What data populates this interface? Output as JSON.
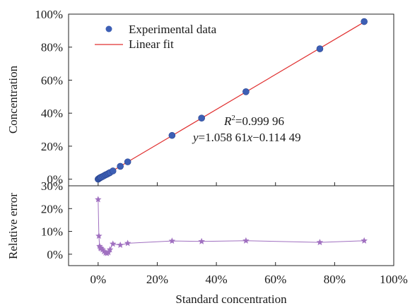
{
  "chart_data": [
    {
      "type": "scatter",
      "ylabel": "Concentration",
      "xlim": [
        -0.1,
        1.0
      ],
      "ylim": [
        -0.04,
        1.0
      ],
      "yticks": [
        0,
        0.2,
        0.4,
        0.6,
        0.8,
        1.0
      ],
      "ytick_labels": [
        "0%",
        "20%",
        "40%",
        "60%",
        "80%",
        "100%"
      ],
      "legend_position": "top-left",
      "series": [
        {
          "name": "Experimental data",
          "kind": "points",
          "color": "#3d5fb5",
          "x": [
            0.0,
            0.0025,
            0.005,
            0.0075,
            0.01,
            0.015,
            0.02,
            0.025,
            0.03,
            0.035,
            0.04,
            0.05,
            0.075,
            0.1,
            0.25,
            0.35,
            0.5,
            0.75,
            0.9
          ],
          "y": [
            0.0,
            0.0035,
            0.007,
            0.0095,
            0.012,
            0.016,
            0.021,
            0.026,
            0.03,
            0.035,
            0.04,
            0.05,
            0.078,
            0.105,
            0.265,
            0.37,
            0.53,
            0.79,
            0.955
          ]
        },
        {
          "name": "Linear fit",
          "kind": "line",
          "color": "#e03030",
          "x": [
            0.0,
            0.9
          ],
          "y": [
            -0.001,
            0.952
          ]
        }
      ],
      "annotations": {
        "r2_symbol": "R",
        "r2_sup": "2",
        "r2_value": "=0.999 96",
        "eq_y": "y",
        "eq_mid": "=1.058 61",
        "eq_x": "x",
        "eq_end": "−0.114 49"
      }
    },
    {
      "type": "line",
      "ylabel": "Relative error",
      "xlabel": "Standard concentration",
      "xlim": [
        -0.1,
        1.0
      ],
      "ylim": [
        -0.05,
        0.3
      ],
      "xticks": [
        0,
        0.2,
        0.4,
        0.6,
        0.8,
        1.0
      ],
      "xtick_labels": [
        "0%",
        "20%",
        "40%",
        "60%",
        "80%",
        "100%"
      ],
      "yticks": [
        0,
        0.1,
        0.2,
        0.3
      ],
      "ytick_labels": [
        "0%",
        "10%",
        "20%",
        "30%"
      ],
      "series": [
        {
          "marker": "star",
          "color": "#a070c0",
          "x": [
            0.0,
            0.0025,
            0.005,
            0.0075,
            0.01,
            0.015,
            0.02,
            0.025,
            0.03,
            0.035,
            0.04,
            0.05,
            0.075,
            0.1,
            0.25,
            0.35,
            0.5,
            0.75,
            0.9
          ],
          "y": [
            0.24,
            0.08,
            0.035,
            0.028,
            0.025,
            0.02,
            0.012,
            0.006,
            0.004,
            0.008,
            0.02,
            0.045,
            0.04,
            0.048,
            0.058,
            0.056,
            0.059,
            0.052,
            0.059
          ]
        }
      ]
    }
  ]
}
